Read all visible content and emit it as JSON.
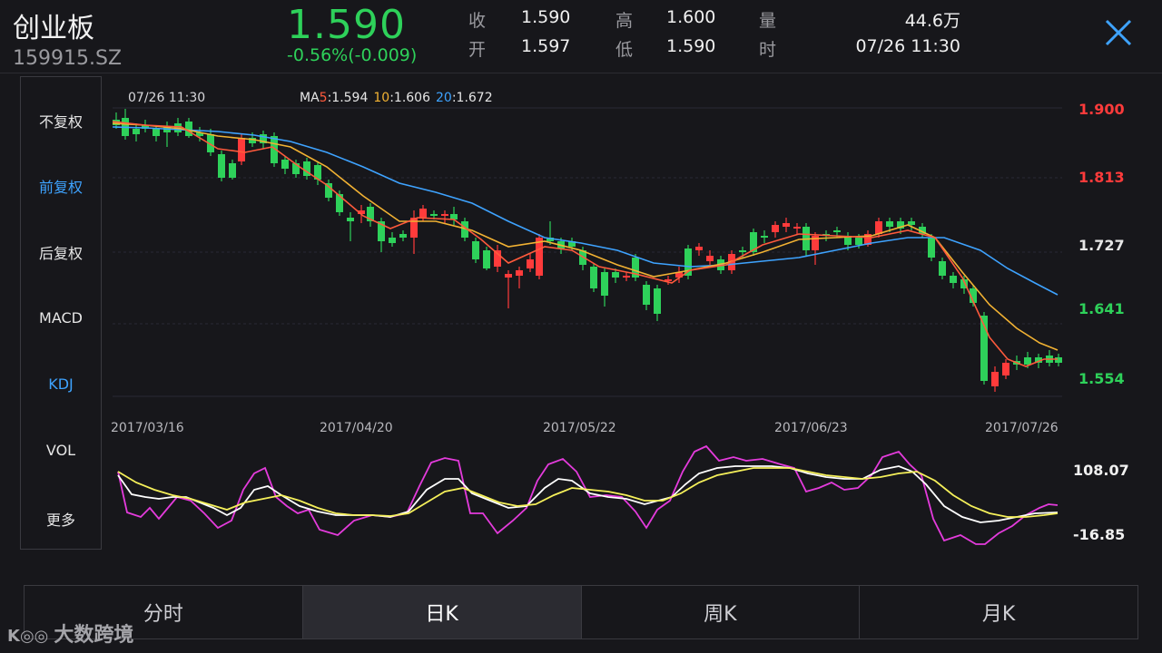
{
  "header": {
    "name": "创业板",
    "code": "159915.SZ",
    "price": "1.590",
    "change": "-0.56%(-0.009)",
    "stats": [
      {
        "k": "收",
        "v": "1.590"
      },
      {
        "k": "高",
        "v": "1.600"
      },
      {
        "k": "量",
        "v": "44.6万"
      },
      {
        "k": "开",
        "v": "1.597"
      },
      {
        "k": "低",
        "v": "1.590"
      },
      {
        "k": "时",
        "v": "07/26 11:30"
      }
    ],
    "close_icon": "close-icon"
  },
  "sidebar": {
    "items": [
      {
        "label": "不复权",
        "active": false
      },
      {
        "label": "前复权",
        "active": true
      },
      {
        "label": "后复权",
        "active": false
      },
      {
        "label": "MACD",
        "active": false
      },
      {
        "label": "KDJ",
        "active": true
      },
      {
        "label": "VOL",
        "active": false
      },
      {
        "label": "更多",
        "active": false
      }
    ]
  },
  "main_chart": {
    "time_label": "07/26 11:30",
    "ma_prefix": "MA",
    "ma": [
      {
        "name": "5",
        "value": ":1.594",
        "color": "#ff5a3c"
      },
      {
        "name": "10",
        "value": ":1.606",
        "color": "#f2b233"
      },
      {
        "name": "20",
        "value": ":1.672",
        "color": "#3ea3ff"
      }
    ],
    "price_ticks": [
      {
        "label": "1.900",
        "color": "#ff3b3b"
      },
      {
        "label": "1.813",
        "color": "#ff3b3b"
      },
      {
        "label": "1.727",
        "color": "#e6e6e6"
      },
      {
        "label": "1.641",
        "color": "#2ed15a"
      },
      {
        "label": "1.554",
        "color": "#2ed15a"
      }
    ],
    "dates": [
      "2017/03/16",
      "2017/04/20",
      "2017/05/22",
      "2017/06/23",
      "2017/07/26"
    ]
  },
  "kdj": {
    "ticks": [
      "108.07",
      "-16.85"
    ]
  },
  "tabs": [
    {
      "label": "分时",
      "active": false
    },
    {
      "label": "日K",
      "active": true
    },
    {
      "label": "周K",
      "active": false
    },
    {
      "label": "月K",
      "active": false
    }
  ],
  "watermark": {
    "logo": "K◎◎",
    "text": "大数跨境"
  },
  "colors": {
    "up": "#ff3b3b",
    "down": "#2ed15a",
    "ma5": "#ff5a3c",
    "ma10": "#f2b233",
    "ma20": "#3ea3ff",
    "k": "#ffffff",
    "d": "#f5f05a",
    "j": "#e43bdc"
  }
}
